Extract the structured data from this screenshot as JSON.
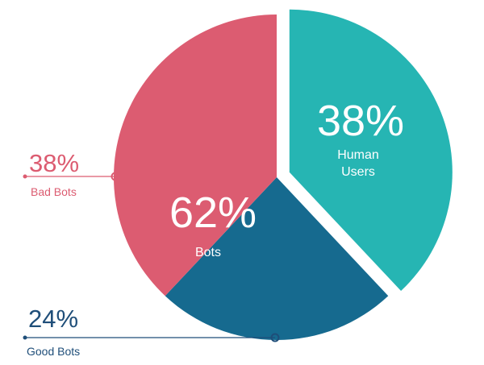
{
  "chart_data": {
    "type": "pie",
    "title": "",
    "slices": [
      {
        "name": "Human Users",
        "value": 38,
        "label": "38%",
        "color": "#26b5b3",
        "exploded": true
      },
      {
        "name": "Good Bots",
        "value": 24,
        "label": "24%",
        "color": "#166a8f",
        "exploded": false
      },
      {
        "name": "Bad Bots",
        "value": 38,
        "label": "38%",
        "color": "#dc5c71",
        "exploded": false
      }
    ],
    "inner_labels": [
      {
        "value": "38%",
        "text_lines": [
          "Human",
          "Users"
        ]
      },
      {
        "value": "62%",
        "text_lines": [
          "Bots"
        ]
      }
    ],
    "callouts": [
      {
        "value": "38%",
        "name": "Bad Bots",
        "color": "#dc5c71"
      },
      {
        "value": "24%",
        "name": "Good Bots",
        "color": "#1f4e79"
      }
    ]
  }
}
